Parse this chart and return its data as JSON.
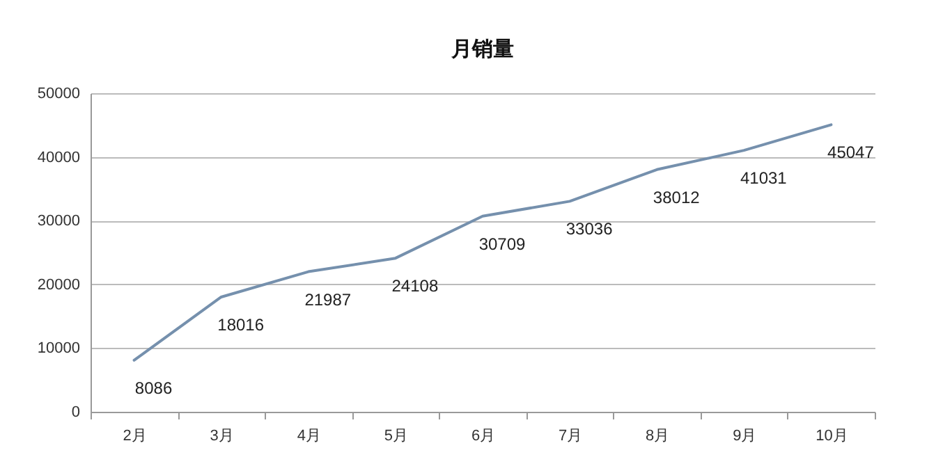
{
  "chart_data": {
    "type": "line",
    "title": "月销量",
    "categories": [
      "2月",
      "3月",
      "4月",
      "5月",
      "6月",
      "7月",
      "8月",
      "9月",
      "10月"
    ],
    "series": [
      {
        "color": "#7590ad",
        "values": [
          8086,
          18016,
          21987,
          24108,
          30709,
          33036,
          38012,
          41031,
          45047
        ]
      }
    ],
    "ylim": [
      0,
      50000
    ],
    "yticks": [
      0,
      10000,
      20000,
      30000,
      40000,
      50000
    ],
    "grid": "y",
    "data_labels": true,
    "marker": "none",
    "line_style": "solid",
    "legend": false
  }
}
